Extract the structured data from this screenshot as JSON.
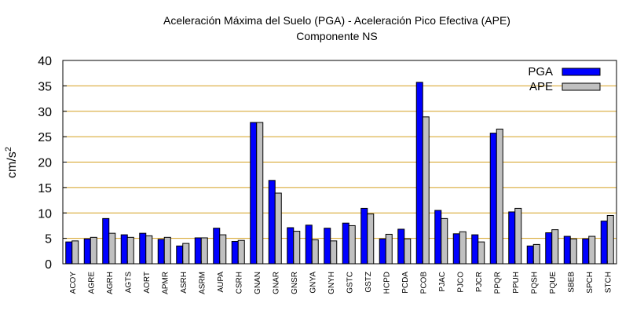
{
  "chart_data": {
    "type": "bar",
    "title": "Aceleración Máxima del Suelo (PGA) -  Aceleración Pico Efectiva (APE)",
    "subtitle": "Componente NS",
    "xlabel": "",
    "ylabel": "cm/s",
    "ylabel_superscript": "2",
    "ylim": [
      0,
      40
    ],
    "yticks": [
      "0",
      "5",
      "10",
      "15",
      "20",
      "25",
      "30",
      "35",
      "40"
    ],
    "grid": true,
    "legend_position": "top-right",
    "categories": [
      "ACOY",
      "AGRE",
      "AGRH",
      "AGTS",
      "AORT",
      "APMR",
      "ASRH",
      "ASRM",
      "AUPA",
      "CSRH",
      "GNAN",
      "GNAR",
      "GNSR",
      "GNYA",
      "GNYH",
      "GSTC",
      "GSTZ",
      "HCPD",
      "PCDA",
      "PCOB",
      "PJAC",
      "PJCO",
      "PJCR",
      "PPQR",
      "PPUH",
      "PQSH",
      "PQUE",
      "SBEB",
      "SPCH",
      "STCH"
    ],
    "series": [
      {
        "name": "PGA",
        "color": "#0000ff",
        "values": [
          4.3,
          4.9,
          8.9,
          5.7,
          6.0,
          4.8,
          3.5,
          5.1,
          7.0,
          4.4,
          27.8,
          16.4,
          7.1,
          7.6,
          7.0,
          8.0,
          10.9,
          4.9,
          6.8,
          35.7,
          10.5,
          5.9,
          5.7,
          25.7,
          10.2,
          3.5,
          6.1,
          5.4,
          4.9,
          8.4
        ]
      },
      {
        "name": "APE",
        "color": "#c0c0c0",
        "values": [
          4.5,
          5.2,
          6.0,
          5.2,
          5.5,
          5.2,
          4.0,
          5.1,
          5.7,
          4.6,
          27.8,
          13.9,
          6.4,
          4.7,
          4.5,
          7.5,
          9.8,
          5.8,
          4.9,
          28.9,
          8.9,
          6.3,
          4.3,
          26.5,
          10.9,
          3.8,
          6.7,
          4.9,
          5.4,
          9.5
        ]
      }
    ],
    "colors": {
      "grid": "#d4a020",
      "axis": "#000000",
      "bar_border": "#000000"
    }
  }
}
